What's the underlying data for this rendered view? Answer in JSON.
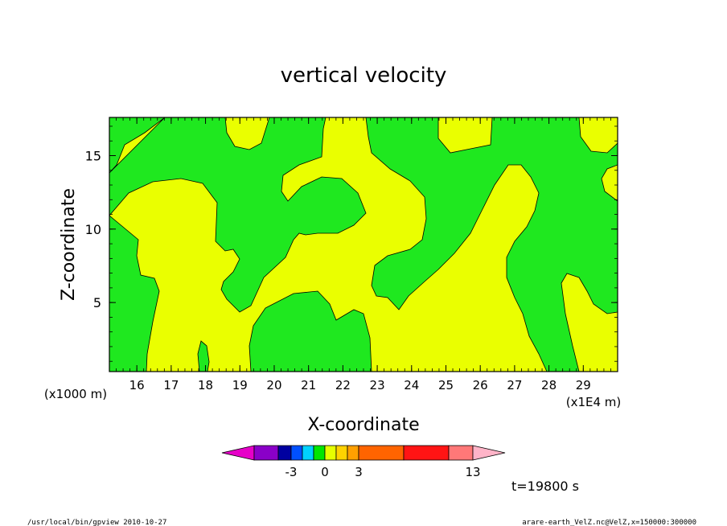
{
  "chart_data": {
    "type": "contour",
    "title": "vertical velocity",
    "xlabel": "X-coordinate",
    "ylabel": "Z-coordinate",
    "x_unit_label": "(x1E4 m)",
    "y_unit_label": "(x1000 m)",
    "x_ticks": [
      "16",
      "17",
      "18",
      "19",
      "20",
      "21",
      "22",
      "23",
      "24",
      "25",
      "26",
      "27",
      "28",
      "29"
    ],
    "y_ticks": [
      "5",
      "10",
      "15"
    ],
    "xlim": [
      15.2,
      30.0
    ],
    "ylim": [
      0.3,
      17.6
    ],
    "fields": {
      "positive_color": "#eaff00",
      "negative_color": "#1fe81f"
    },
    "colorbar": {
      "colors": [
        "#e600c8",
        "#8a00c8",
        "#0000a0",
        "#0050ff",
        "#00d2ff",
        "#00e600",
        "#e6ff00",
        "#ffd200",
        "#ffa000",
        "#ff6400",
        "#ff1414",
        "#ff7878",
        "#ffb4c8"
      ],
      "tick_labels": [
        "-3",
        "0",
        "3",
        "13"
      ]
    },
    "time_label": "t=19800 s"
  },
  "footer": {
    "left": "/usr/local/bin/gpview   2010-10-27",
    "right": "arare-earth_VelZ.nc@VelZ,x=150000:300000"
  }
}
